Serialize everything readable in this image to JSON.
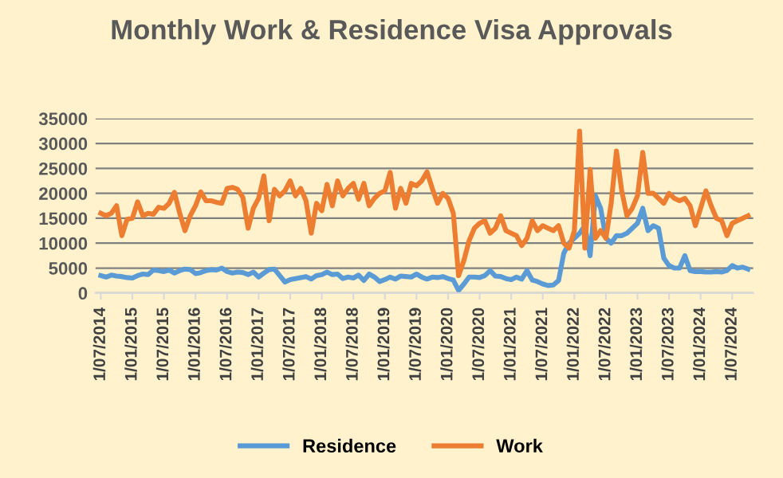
{
  "chart_data": {
    "type": "line",
    "title": "Monthly Work & Residence Visa Approvals",
    "categories": [
      "1/07/2014",
      null,
      null,
      null,
      null,
      null,
      "1/01/2015",
      null,
      null,
      null,
      null,
      null,
      "1/07/2015",
      null,
      null,
      null,
      null,
      null,
      "1/01/2016",
      null,
      null,
      null,
      null,
      null,
      "1/07/2016",
      null,
      null,
      null,
      null,
      null,
      "1/01/2017",
      null,
      null,
      null,
      null,
      null,
      "1/07/2017",
      null,
      null,
      null,
      null,
      null,
      "1/01/2018",
      null,
      null,
      null,
      null,
      null,
      "1/07/2018",
      null,
      null,
      null,
      null,
      null,
      "1/01/2019",
      null,
      null,
      null,
      null,
      null,
      "1/07/2019",
      null,
      null,
      null,
      null,
      null,
      "1/01/2020",
      null,
      null,
      null,
      null,
      null,
      "1/07/2020",
      null,
      null,
      null,
      null,
      null,
      "1/01/2021",
      null,
      null,
      null,
      null,
      null,
      "1/07/2021",
      null,
      null,
      null,
      null,
      null,
      "1/01/2022",
      null,
      null,
      null,
      null,
      null,
      "1/07/2022",
      null,
      null,
      null,
      null,
      null,
      "1/01/2023",
      null,
      null,
      null,
      null,
      null,
      "1/07/2023",
      null,
      null,
      null,
      null,
      null,
      "1/01/2024",
      null,
      null,
      null,
      null,
      null,
      "1/07/2024",
      null,
      null,
      null
    ],
    "series": [
      {
        "name": "Residence",
        "color": "#5b9bd5",
        "values": [
          3500,
          3200,
          3600,
          3400,
          3300,
          3100,
          3000,
          3500,
          3800,
          3700,
          4600,
          4500,
          4300,
          4600,
          4000,
          4500,
          4800,
          4700,
          3900,
          4100,
          4500,
          4700,
          4600,
          5000,
          4300,
          4000,
          4200,
          4100,
          3700,
          4200,
          3200,
          4000,
          4700,
          4800,
          3500,
          2200,
          2700,
          2900,
          3100,
          3300,
          2800,
          3500,
          3700,
          4200,
          3700,
          3800,
          2900,
          3200,
          3000,
          3600,
          2500,
          3800,
          3200,
          2300,
          2700,
          3200,
          2800,
          3400,
          3300,
          3200,
          3800,
          3200,
          2800,
          3200,
          3100,
          3300,
          2900,
          2600,
          500,
          1800,
          3200,
          3200,
          3100,
          3500,
          4500,
          3400,
          3300,
          2900,
          2700,
          3200,
          2800,
          4500,
          2600,
          2300,
          1800,
          1500,
          1600,
          2500,
          8000,
          10000,
          11000,
          12000,
          13500,
          7500,
          19500,
          17000,
          11000,
          10000,
          11500,
          11500,
          12000,
          13000,
          14000,
          17000,
          12500,
          13500,
          13000,
          7000,
          5500,
          5000,
          5000,
          7500,
          4500,
          4300,
          4300,
          4200,
          4200,
          4300,
          4200,
          4500,
          5500,
          5000,
          5200,
          4800
        ]
      },
      {
        "name": "Work",
        "color": "#ed7d31",
        "values": [
          16000,
          15500,
          16000,
          17500,
          11500,
          14800,
          15000,
          18300,
          15500,
          16000,
          15800,
          17200,
          17000,
          18000,
          20200,
          16000,
          12500,
          15500,
          17500,
          20300,
          18500,
          18500,
          18200,
          18000,
          21000,
          21200,
          20800,
          19200,
          13000,
          17000,
          19000,
          23500,
          14500,
          20800,
          19500,
          20500,
          22500,
          19500,
          21000,
          18500,
          12000,
          18000,
          16500,
          21800,
          17500,
          22500,
          19500,
          21000,
          22000,
          18800,
          22000,
          17500,
          19000,
          20000,
          20500,
          24200,
          17000,
          21000,
          18000,
          22000,
          21500,
          22500,
          24300,
          21000,
          18000,
          20000,
          19000,
          16000,
          3500,
          6500,
          10500,
          13000,
          14000,
          14500,
          12000,
          13000,
          15500,
          12500,
          12000,
          11500,
          9500,
          11000,
          14500,
          12500,
          13500,
          13000,
          12500,
          13500,
          10000,
          9000,
          12500,
          32500,
          9000,
          24800,
          11000,
          12500,
          11000,
          18000,
          28500,
          20500,
          15500,
          17000,
          19500,
          28200,
          20000,
          20000,
          19000,
          18000,
          20000,
          19000,
          18500,
          19000,
          17500,
          13500,
          17000,
          20500,
          17500,
          15000,
          14500,
          11500,
          14000,
          14500,
          15000,
          15500
        ]
      }
    ],
    "ylim": [
      0,
      35000
    ],
    "yticks": [
      0,
      5000,
      10000,
      15000,
      20000,
      25000,
      30000,
      35000
    ],
    "grid": "y",
    "legend": "bottom",
    "marker": "none",
    "line_style": "solid"
  }
}
